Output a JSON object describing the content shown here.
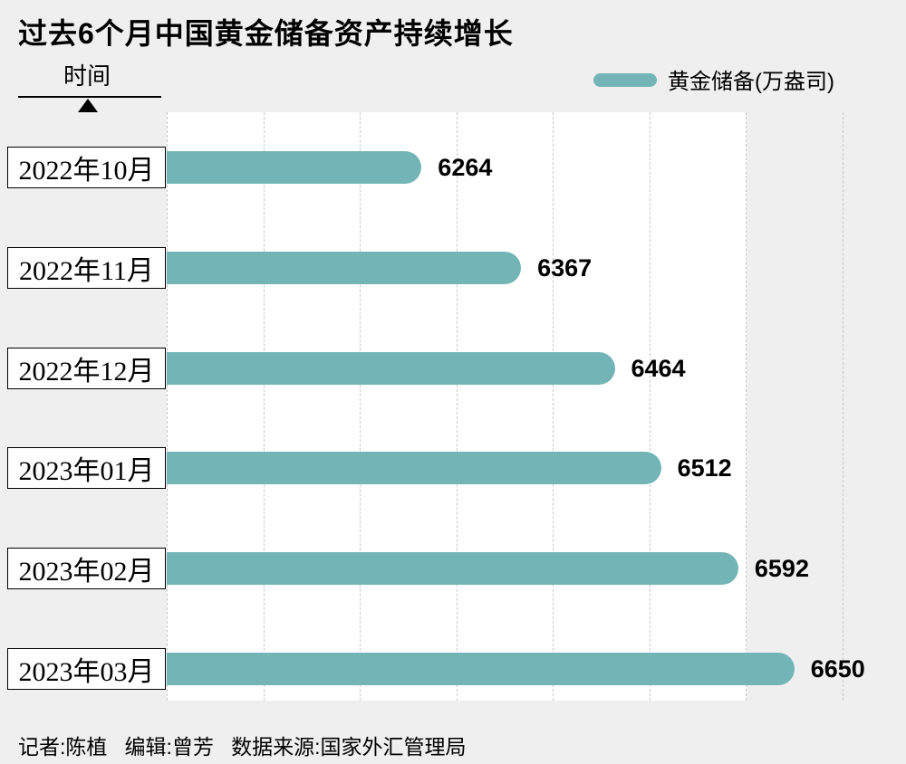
{
  "title": "过去6个月中国黄金储备资产持续增长",
  "axis": {
    "label": "时间"
  },
  "legend": {
    "label": "黄金储备(万盎司)",
    "color": "#73b5b6"
  },
  "footer": {
    "text": "记者:陈植   编辑:曾芳   数据来源:国家外汇管理局"
  },
  "colors": {
    "background": "#efefef",
    "plot_background": "#ffffff",
    "bar": "#73b5b6",
    "gridline": "#c7c7c7",
    "text": "#000000"
  },
  "chart_data": {
    "type": "bar",
    "orientation": "horizontal",
    "title": "过去6个月中国黄金储备资产持续增长",
    "categories": [
      "2022年10月",
      "2022年11月",
      "2022年12月",
      "2023年01月",
      "2023年02月",
      "2023年03月"
    ],
    "values": [
      6264,
      6367,
      6464,
      6512,
      6592,
      6650
    ],
    "xlabel": "黄金储备(万盎司)",
    "ylabel": "时间",
    "xlim": [
      6000,
      6700
    ],
    "grid_step": 100,
    "grid": "vertical-dashed",
    "legend_position": "top-right",
    "legend_entries": [
      "黄金储备(万盎司)"
    ],
    "bar_color": "#73b5b6",
    "value_labels_shown": true
  }
}
